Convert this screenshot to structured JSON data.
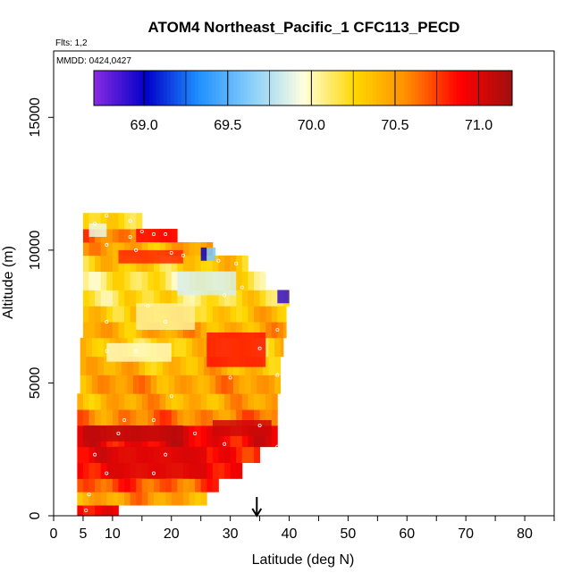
{
  "chart_data": {
    "type": "heatmap",
    "title": "ATOM4 Northeast_Pacific_1 CFC113_PECD",
    "annotations": [
      "Flts: 1,2",
      "MMDD: 0424,0427"
    ],
    "xlabel": "Latitude (deg N)",
    "ylabel": "Altitude (m)",
    "xlim": [
      0,
      85
    ],
    "ylim": [
      0,
      17500
    ],
    "x_ticks": [
      0,
      5,
      10,
      20,
      30,
      40,
      50,
      60,
      70,
      80
    ],
    "y_ticks": [
      0,
      5000,
      10000,
      15000
    ],
    "grid": false,
    "colorbar": {
      "position": "top",
      "range": [
        68.7,
        71.2
      ],
      "ticks": [
        "69.0",
        "69.5",
        "70.0",
        "70.5",
        "71.0"
      ],
      "tick_values": [
        69.0,
        69.5,
        70.0,
        70.5,
        71.0
      ],
      "colors": [
        "#8a2be2",
        "#0000c8",
        "#1e90ff",
        "#87cefa",
        "#ffffe0",
        "#ffd700",
        "#ff8c00",
        "#ff0000",
        "#a01010"
      ]
    },
    "arrow_marker": {
      "latitude": 34.5,
      "direction": "down"
    },
    "bands": [
      {
        "alt": [
          0,
          400
        ],
        "lat": [
          4,
          11
        ],
        "value": 70.95
      },
      {
        "alt": [
          400,
          900
        ],
        "lat": [
          4,
          26
        ],
        "value": 70.5
      },
      {
        "alt": [
          900,
          1400
        ],
        "lat": [
          4,
          28
        ],
        "value": 70.7
      },
      {
        "alt": [
          1400,
          2000
        ],
        "lat": [
          4,
          32
        ],
        "value": 70.85
      },
      {
        "alt": [
          2000,
          2600
        ],
        "lat": [
          4,
          35
        ],
        "value": 70.9
      },
      {
        "alt": [
          2600,
          3400
        ],
        "lat": [
          4,
          38
        ],
        "value": 70.95
      },
      {
        "alt": [
          3400,
          4000
        ],
        "lat": [
          4,
          38
        ],
        "value": 70.6
      },
      {
        "alt": [
          4000,
          4600
        ],
        "lat": [
          4,
          38
        ],
        "value": 70.45
      },
      {
        "alt": [
          4600,
          5300
        ],
        "lat": [
          4.5,
          38.5
        ],
        "value": 70.5
      },
      {
        "alt": [
          5300,
          6000
        ],
        "lat": [
          4.5,
          38.5
        ],
        "value": 70.4
      },
      {
        "alt": [
          6000,
          6700
        ],
        "lat": [
          4.5,
          39
        ],
        "value": 70.3
      },
      {
        "alt": [
          6700,
          7300
        ],
        "lat": [
          5,
          39.5
        ],
        "value": 70.45
      },
      {
        "alt": [
          7300,
          7900
        ],
        "lat": [
          5,
          39.5
        ],
        "value": 70.35
      },
      {
        "alt": [
          7900,
          8500
        ],
        "lat": [
          5,
          40
        ],
        "value": 70.2
      },
      {
        "alt": [
          8500,
          9200
        ],
        "lat": [
          5,
          36
        ],
        "value": 70.15
      },
      {
        "alt": [
          9200,
          9800
        ],
        "lat": [
          5,
          33
        ],
        "value": 70.3
      },
      {
        "alt": [
          9800,
          10300
        ],
        "lat": [
          5,
          27
        ],
        "value": 70.45
      },
      {
        "alt": [
          10300,
          10800
        ],
        "lat": [
          5,
          21
        ],
        "value": 70.6
      },
      {
        "alt": [
          10800,
          11400
        ],
        "lat": [
          5,
          15
        ],
        "value": 70.3
      }
    ],
    "patches": [
      {
        "alt": [
          2800,
          3400
        ],
        "lat": [
          5,
          22
        ],
        "value": 71.1
      },
      {
        "alt": [
          1400,
          2600
        ],
        "lat": [
          10,
          26
        ],
        "value": 71.0
      },
      {
        "alt": [
          3000,
          3600
        ],
        "lat": [
          27,
          37
        ],
        "value": 71.05
      },
      {
        "alt": [
          5600,
          6900
        ],
        "lat": [
          26,
          36
        ],
        "value": 70.85
      },
      {
        "alt": [
          9500,
          10000
        ],
        "lat": [
          11,
          22
        ],
        "value": 70.8
      },
      {
        "alt": [
          8000,
          8500
        ],
        "lat": [
          38,
          40
        ],
        "value": 68.9
      },
      {
        "alt": [
          9600,
          10100
        ],
        "lat": [
          25,
          26
        ],
        "value": 69.0
      },
      {
        "alt": [
          9600,
          10100
        ],
        "lat": [
          26,
          27.5
        ],
        "value": 69.6
      },
      {
        "alt": [
          8300,
          9200
        ],
        "lat": [
          21,
          31
        ],
        "value": 69.85
      },
      {
        "alt": [
          7000,
          8000
        ],
        "lat": [
          14,
          24
        ],
        "value": 70.05
      },
      {
        "alt": [
          10500,
          11000
        ],
        "lat": [
          6,
          9
        ],
        "value": 69.9
      },
      {
        "alt": [
          5800,
          6500
        ],
        "lat": [
          9,
          20
        ],
        "value": 70.0
      },
      {
        "alt": [
          10300,
          10800
        ],
        "lat": [
          14,
          21
        ],
        "value": 70.9
      }
    ],
    "sample_points": [
      [
        5.5,
        200
      ],
      [
        6,
        800
      ],
      [
        9,
        1600
      ],
      [
        17,
        1600
      ],
      [
        7,
        2300
      ],
      [
        19,
        2300
      ],
      [
        11,
        3100
      ],
      [
        24,
        3100
      ],
      [
        35,
        3400
      ],
      [
        38,
        2600
      ],
      [
        29,
        2700
      ],
      [
        17,
        3600
      ],
      [
        12,
        3600
      ],
      [
        20,
        4500
      ],
      [
        30,
        5200
      ],
      [
        9,
        6200
      ],
      [
        14,
        6200
      ],
      [
        35,
        6300
      ],
      [
        38,
        5300
      ],
      [
        38,
        7000
      ],
      [
        9,
        7300
      ],
      [
        19,
        7300
      ],
      [
        16,
        7900
      ],
      [
        29,
        8300
      ],
      [
        32,
        8600
      ],
      [
        36,
        9200
      ],
      [
        31,
        9500
      ],
      [
        28,
        9600
      ],
      [
        22,
        9800
      ],
      [
        20,
        9900
      ],
      [
        14,
        10000
      ],
      [
        9,
        10200
      ],
      [
        13,
        10500
      ],
      [
        17,
        10600
      ],
      [
        19,
        10600
      ],
      [
        15,
        10700
      ],
      [
        7,
        11000
      ],
      [
        13,
        11100
      ],
      [
        9,
        11300
      ]
    ]
  }
}
